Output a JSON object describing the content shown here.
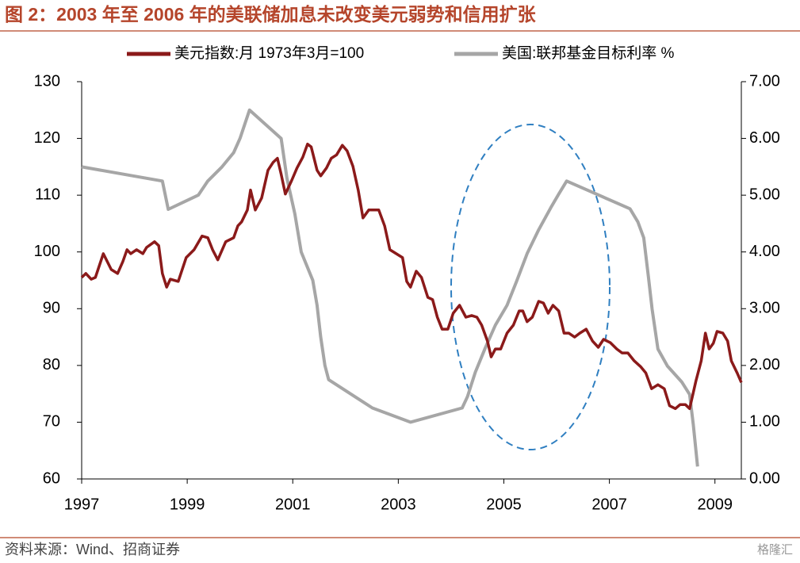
{
  "chart_data": {
    "type": "line",
    "title": "图 2：2003 年至 2006 年的美联储加息未改变美元弱势和信用扩张",
    "source": "资料来源：Wind、招商证券",
    "watermark": "格隆汇",
    "xlim": [
      1997,
      2009.5
    ],
    "xticks": [
      1997,
      1999,
      2001,
      2003,
      2005,
      2007,
      2009
    ],
    "ylim": [
      60,
      130
    ],
    "yticks": [
      60,
      70,
      80,
      90,
      100,
      110,
      120,
      130
    ],
    "y2lim": [
      0,
      7
    ],
    "y2ticks": [
      {
        "value": 0,
        "label": "0.00"
      },
      {
        "value": 1,
        "label": "1.00"
      },
      {
        "value": 2,
        "label": "2.00"
      },
      {
        "value": 3,
        "label": "3.00"
      },
      {
        "value": 4,
        "label": "4.00"
      },
      {
        "value": 5,
        "label": "5.00"
      },
      {
        "value": 6,
        "label": "6.00"
      },
      {
        "value": 7,
        "label": "7.00"
      }
    ],
    "series": [
      {
        "name": "美元指数:月 1973年3月=100",
        "color": "#8b1a1a",
        "axis": "y",
        "x": [
          1997.0,
          1997.08,
          1997.18,
          1997.26,
          1997.41,
          1997.56,
          1997.68,
          1997.78,
          1997.86,
          1997.93,
          1998.04,
          1998.16,
          1998.23,
          1998.38,
          1998.46,
          1998.53,
          1998.61,
          1998.68,
          1998.83,
          1998.98,
          1999.13,
          1999.28,
          1999.39,
          1999.48,
          1999.58,
          1999.73,
          1999.88,
          1999.96,
          2000.03,
          2000.14,
          2000.2,
          2000.29,
          2000.41,
          2000.53,
          2000.63,
          2000.71,
          2000.78,
          2000.86,
          2000.98,
          2001.08,
          2001.19,
          2001.28,
          2001.35,
          2001.46,
          2001.53,
          2001.64,
          2001.73,
          2001.83,
          2001.94,
          2002.03,
          2002.14,
          2002.24,
          2002.33,
          2002.44,
          2002.63,
          2002.74,
          2002.84,
          2002.96,
          2003.08,
          2003.16,
          2003.23,
          2003.34,
          2003.44,
          2003.56,
          2003.65,
          2003.74,
          2003.83,
          2003.94,
          2004.04,
          2004.16,
          2004.28,
          2004.39,
          2004.49,
          2004.58,
          2004.69,
          2004.76,
          2004.84,
          2004.94,
          2005.06,
          2005.18,
          2005.29,
          2005.36,
          2005.44,
          2005.54,
          2005.66,
          2005.75,
          2005.84,
          2005.93,
          2006.04,
          2006.14,
          2006.23,
          2006.34,
          2006.44,
          2006.56,
          2006.68,
          2006.79,
          2006.89,
          2007.02,
          2007.14,
          2007.24,
          2007.35,
          2007.47,
          2007.59,
          2007.69,
          2007.8,
          2007.92,
          2008.04,
          2008.14,
          2008.25,
          2008.34,
          2008.44,
          2008.52,
          2008.64,
          2008.74,
          2008.82,
          2008.89,
          2008.97,
          2009.04,
          2009.15,
          2009.24,
          2009.31,
          2009.42,
          2009.5
        ],
        "values": [
          95.5,
          96.2,
          95.2,
          95.5,
          99.7,
          96.9,
          96.2,
          98.3,
          100.4,
          99.7,
          100.4,
          99.7,
          100.8,
          101.8,
          101.1,
          96.2,
          93.8,
          95.2,
          94.8,
          99.0,
          100.4,
          102.8,
          102.5,
          100.4,
          98.6,
          101.8,
          102.5,
          104.6,
          105.3,
          107.4,
          110.9,
          107.4,
          109.5,
          114.4,
          115.8,
          116.5,
          113.7,
          110.2,
          112.6,
          114.8,
          116.7,
          119.0,
          118.5,
          114.4,
          113.4,
          114.8,
          116.5,
          117.1,
          118.8,
          117.8,
          115.1,
          110.9,
          106.0,
          107.4,
          107.4,
          104.6,
          100.4,
          99.7,
          99.0,
          94.8,
          93.8,
          96.6,
          95.5,
          92.0,
          91.6,
          88.5,
          86.4,
          86.4,
          89.2,
          90.6,
          88.5,
          88.8,
          88.5,
          87.1,
          84.3,
          81.5,
          82.9,
          82.9,
          85.7,
          87.1,
          89.6,
          89.6,
          87.7,
          88.5,
          91.3,
          91.0,
          89.2,
          90.6,
          89.6,
          85.7,
          85.7,
          85.0,
          85.7,
          86.4,
          84.3,
          83.2,
          84.6,
          84.0,
          82.9,
          82.2,
          82.2,
          80.8,
          79.8,
          78.7,
          75.9,
          76.6,
          75.9,
          72.9,
          72.4,
          73.1,
          73.1,
          72.4,
          77.3,
          80.8,
          85.7,
          82.9,
          83.9,
          86.0,
          85.7,
          84.3,
          80.8,
          78.7,
          77.0
        ]
      },
      {
        "name": "美国:联邦基金目标利率 %",
        "color": "#a6a6a6",
        "axis": "y2",
        "x": [
          1997.0,
          1998.53,
          1998.64,
          1999.21,
          1999.39,
          1999.66,
          1999.88,
          2000.0,
          2000.18,
          2000.78,
          2000.89,
          2001.04,
          2001.16,
          2001.38,
          2001.46,
          2001.53,
          2001.61,
          2001.68,
          2002.51,
          2003.23,
          2004.21,
          2004.31,
          2004.46,
          2004.64,
          2004.84,
          2005.06,
          2005.24,
          2005.44,
          2005.66,
          2005.89,
          2006.04,
          2006.19,
          2007.39,
          2007.54,
          2007.65,
          2007.74,
          2007.81,
          2007.92,
          2008.1,
          2008.37,
          2008.52,
          2008.59,
          2008.67
        ],
        "values": [
          5.5,
          5.25,
          4.75,
          5.0,
          5.25,
          5.5,
          5.75,
          6.0,
          6.5,
          6.0,
          5.3,
          4.67,
          4.0,
          3.5,
          3.06,
          2.5,
          2.0,
          1.75,
          1.25,
          1.0,
          1.25,
          1.45,
          1.88,
          2.29,
          2.71,
          3.06,
          3.48,
          3.97,
          4.39,
          4.78,
          5.02,
          5.25,
          4.76,
          4.53,
          4.25,
          3.55,
          2.99,
          2.29,
          1.99,
          1.71,
          1.49,
          0.96,
          0.22
        ]
      }
    ]
  }
}
